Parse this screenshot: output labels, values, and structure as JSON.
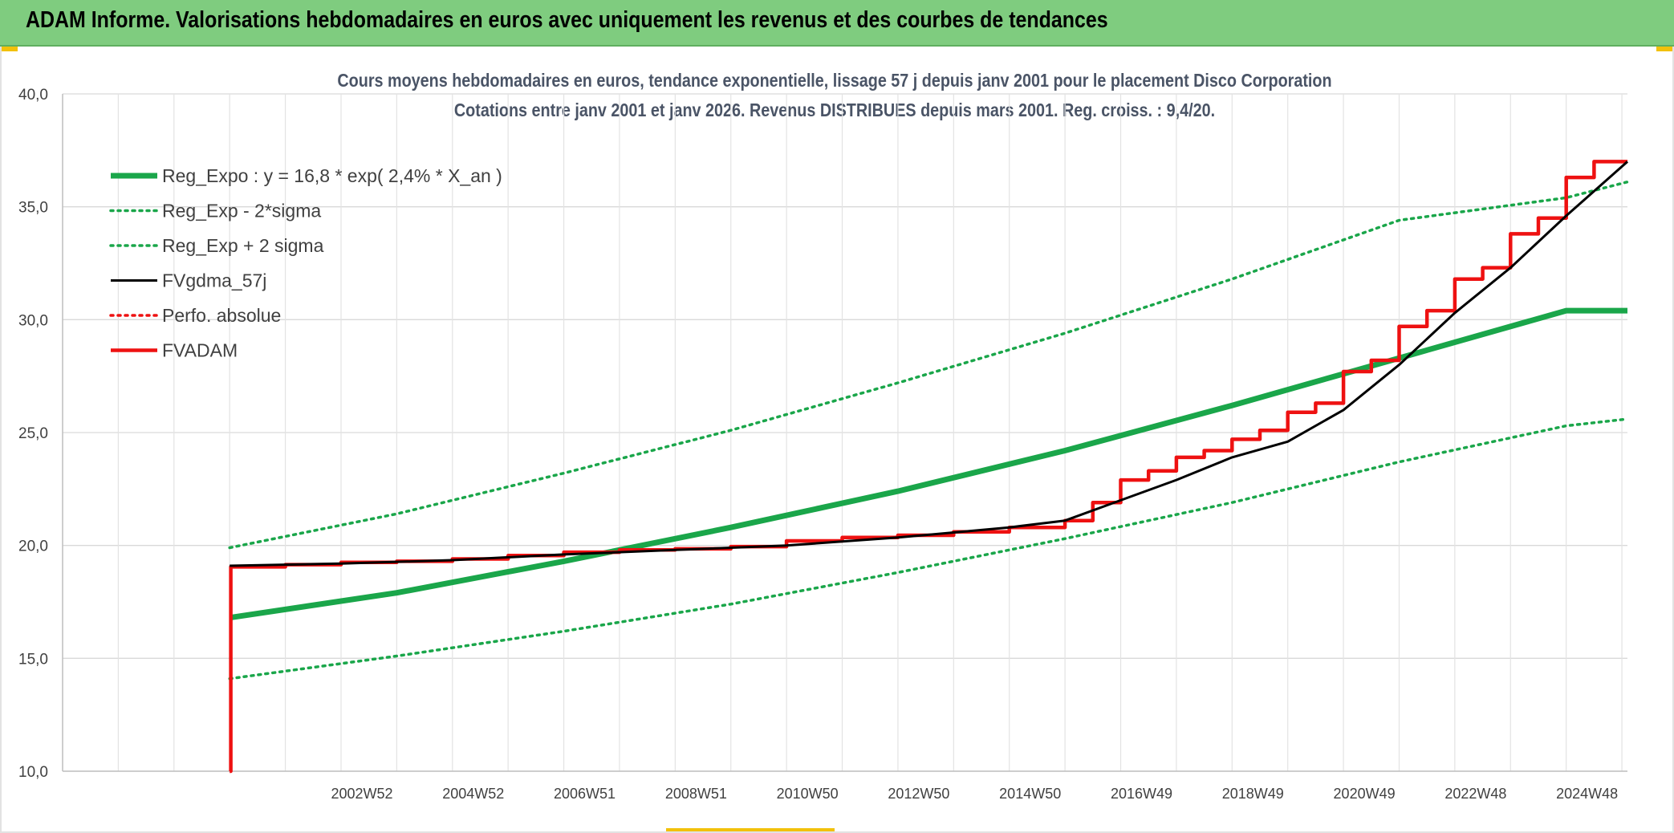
{
  "banner": {
    "title": "ADAM Informe. Valorisations hebdomadaires en euros avec uniquement les revenus et des courbes de tendances"
  },
  "chart_data": {
    "type": "line",
    "title": "Cours moyens hebdomadaires en euros, tendance exponentielle, lissage 57 j depuis janv 2001 pour le placement Disco Corporation",
    "subtitle": "Cotations entre janv 2001 et janv 2026. Revenus DISTRIBUES depuis mars 2001. Reg. croiss. : 9,4/20.",
    "xlabel": "",
    "ylabel": "",
    "ylim": [
      10,
      40
    ],
    "yticks": [
      "10,0",
      "15,0",
      "20,0",
      "25,0",
      "30,0",
      "35,0",
      "40,0"
    ],
    "xlim": [
      1998.0,
      2026.1
    ],
    "x_tick_labels": [
      {
        "x": 2003.0,
        "label": "2002W52"
      },
      {
        "x": 2005.0,
        "label": "2004W52"
      },
      {
        "x": 2007.0,
        "label": "2006W51"
      },
      {
        "x": 2009.0,
        "label": "2008W51"
      },
      {
        "x": 2011.0,
        "label": "2010W50"
      },
      {
        "x": 2013.0,
        "label": "2012W50"
      },
      {
        "x": 2015.0,
        "label": "2014W50"
      },
      {
        "x": 2017.0,
        "label": "2016W49"
      },
      {
        "x": 2019.0,
        "label": "2018W49"
      },
      {
        "x": 2021.0,
        "label": "2020W49"
      },
      {
        "x": 2023.0,
        "label": "2022W48"
      },
      {
        "x": 2025.0,
        "label": "2024W48"
      }
    ],
    "grid": true,
    "legend_position": "top-left",
    "series": [
      {
        "name": "Reg_Expo : y = 16,8 * exp( 2,4% *  X_an )",
        "color": "#1aa64a",
        "style": "solid-thick",
        "x": [
          2001.0,
          2004.0,
          2007.0,
          2010.0,
          2013.0,
          2016.0,
          2019.0,
          2022.0,
          2025.0,
          2026.1
        ],
        "values": [
          16.8,
          17.9,
          19.3,
          20.8,
          22.4,
          24.2,
          26.2,
          28.3,
          30.4,
          30.4
        ]
      },
      {
        "name": "Reg_Exp - 2*sigma",
        "color": "#1aa64a",
        "style": "dotted",
        "x": [
          2001.0,
          2004.0,
          2007.0,
          2010.0,
          2013.0,
          2016.0,
          2019.0,
          2022.0,
          2025.0,
          2026.1
        ],
        "values": [
          14.1,
          15.1,
          16.2,
          17.4,
          18.8,
          20.3,
          21.9,
          23.7,
          25.3,
          25.6
        ]
      },
      {
        "name": "Reg_Exp + 2 sigma",
        "color": "#1aa64a",
        "style": "dotted",
        "x": [
          2001.0,
          2004.0,
          2007.0,
          2010.0,
          2013.0,
          2016.0,
          2019.0,
          2022.0,
          2025.0,
          2026.1
        ],
        "values": [
          19.9,
          21.4,
          23.2,
          25.1,
          27.2,
          29.4,
          31.8,
          34.4,
          35.4,
          36.1
        ]
      },
      {
        "name": "FVgdma_57j",
        "color": "#000000",
        "style": "solid",
        "x": [
          2001.0,
          2003.0,
          2005.0,
          2007.0,
          2009.0,
          2011.0,
          2013.0,
          2015.0,
          2016.0,
          2017.0,
          2018.0,
          2019.0,
          2020.0,
          2021.0,
          2022.0,
          2023.0,
          2024.0,
          2025.0,
          2026.1
        ],
        "values": [
          19.1,
          19.2,
          19.35,
          19.6,
          19.8,
          20.0,
          20.35,
          20.8,
          21.1,
          22.0,
          22.9,
          23.9,
          24.6,
          26.0,
          28.0,
          30.3,
          32.3,
          34.6,
          37.0
        ]
      },
      {
        "name": "Perfo. absolue",
        "color": "#ee1111",
        "style": "dotted",
        "x": [],
        "values": []
      },
      {
        "name": "FVADAM",
        "color": "#ee1111",
        "style": "step",
        "x": [
          2001.0,
          2001.02,
          2002.0,
          2003.0,
          2004.0,
          2005.0,
          2006.0,
          2007.0,
          2008.0,
          2009.0,
          2010.0,
          2011.0,
          2012.0,
          2013.0,
          2014.0,
          2015.0,
          2016.0,
          2016.5,
          2017.0,
          2017.5,
          2018.0,
          2018.5,
          2019.0,
          2019.5,
          2020.0,
          2020.5,
          2021.0,
          2021.5,
          2022.0,
          2022.5,
          2023.0,
          2023.5,
          2024.0,
          2024.5,
          2025.0,
          2025.5,
          2026.1
        ],
        "values": [
          10.0,
          19.05,
          19.15,
          19.25,
          19.3,
          19.4,
          19.55,
          19.7,
          19.8,
          19.85,
          19.95,
          20.2,
          20.35,
          20.45,
          20.6,
          20.8,
          21.1,
          21.9,
          22.9,
          23.3,
          23.9,
          24.2,
          24.7,
          25.1,
          25.9,
          26.3,
          27.7,
          28.2,
          29.7,
          30.4,
          31.8,
          32.3,
          33.8,
          34.5,
          36.3,
          37.0,
          37.0
        ]
      }
    ]
  }
}
